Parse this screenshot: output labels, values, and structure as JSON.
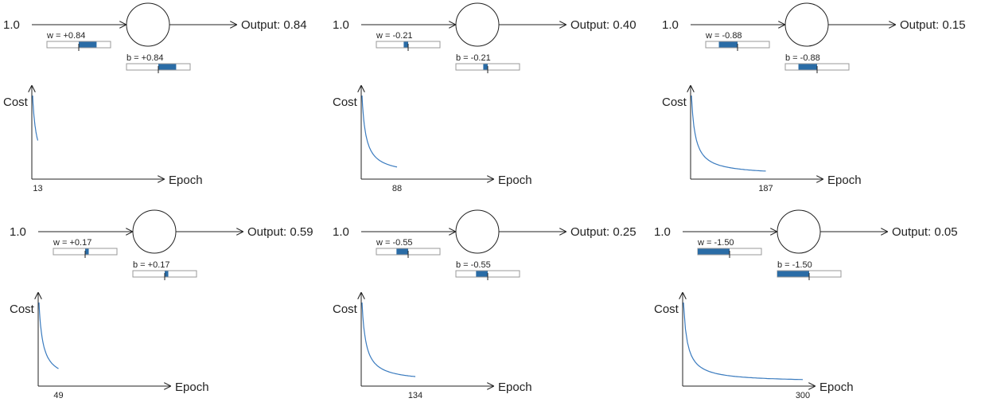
{
  "colors": {
    "fill": "#2a6ca6",
    "curve": "#3a7bbf",
    "line": "#222222",
    "slider_border": "#999999"
  },
  "axis": {
    "y_label": "Cost",
    "x_label": "Epoch"
  },
  "panels": [
    {
      "input": "1.0",
      "output_label": "Output: 0.84",
      "w_label": "w = +0.84",
      "b_label": "b = +0.84",
      "w": 0.84,
      "b": 0.84,
      "epoch_label": "13",
      "epochs": 13
    },
    {
      "input": "1.0",
      "output_label": "Output: 0.40",
      "w_label": "w = -0.21",
      "b_label": "b = -0.21",
      "w": -0.21,
      "b": -0.21,
      "epoch_label": "88",
      "epochs": 88
    },
    {
      "input": "1.0",
      "output_label": "Output: 0.15",
      "w_label": "w = -0.88",
      "b_label": "b = -0.88",
      "w": -0.88,
      "b": -0.88,
      "epoch_label": "187",
      "epochs": 187
    },
    {
      "input": "1.0",
      "output_label": "Output: 0.59",
      "w_label": "w = +0.17",
      "b_label": "b = +0.17",
      "w": 0.17,
      "b": 0.17,
      "epoch_label": "49",
      "epochs": 49
    },
    {
      "input": "1.0",
      "output_label": "Output: 0.25",
      "w_label": "w = -0.55",
      "b_label": "b = -0.55",
      "w": -0.55,
      "b": -0.55,
      "epoch_label": "134",
      "epochs": 134
    },
    {
      "input": "1.0",
      "output_label": "Output: 0.05",
      "w_label": "w = -1.50",
      "b_label": "b = -1.50",
      "w": -1.5,
      "b": -1.5,
      "epoch_label": "300",
      "epochs": 300
    }
  ]
}
